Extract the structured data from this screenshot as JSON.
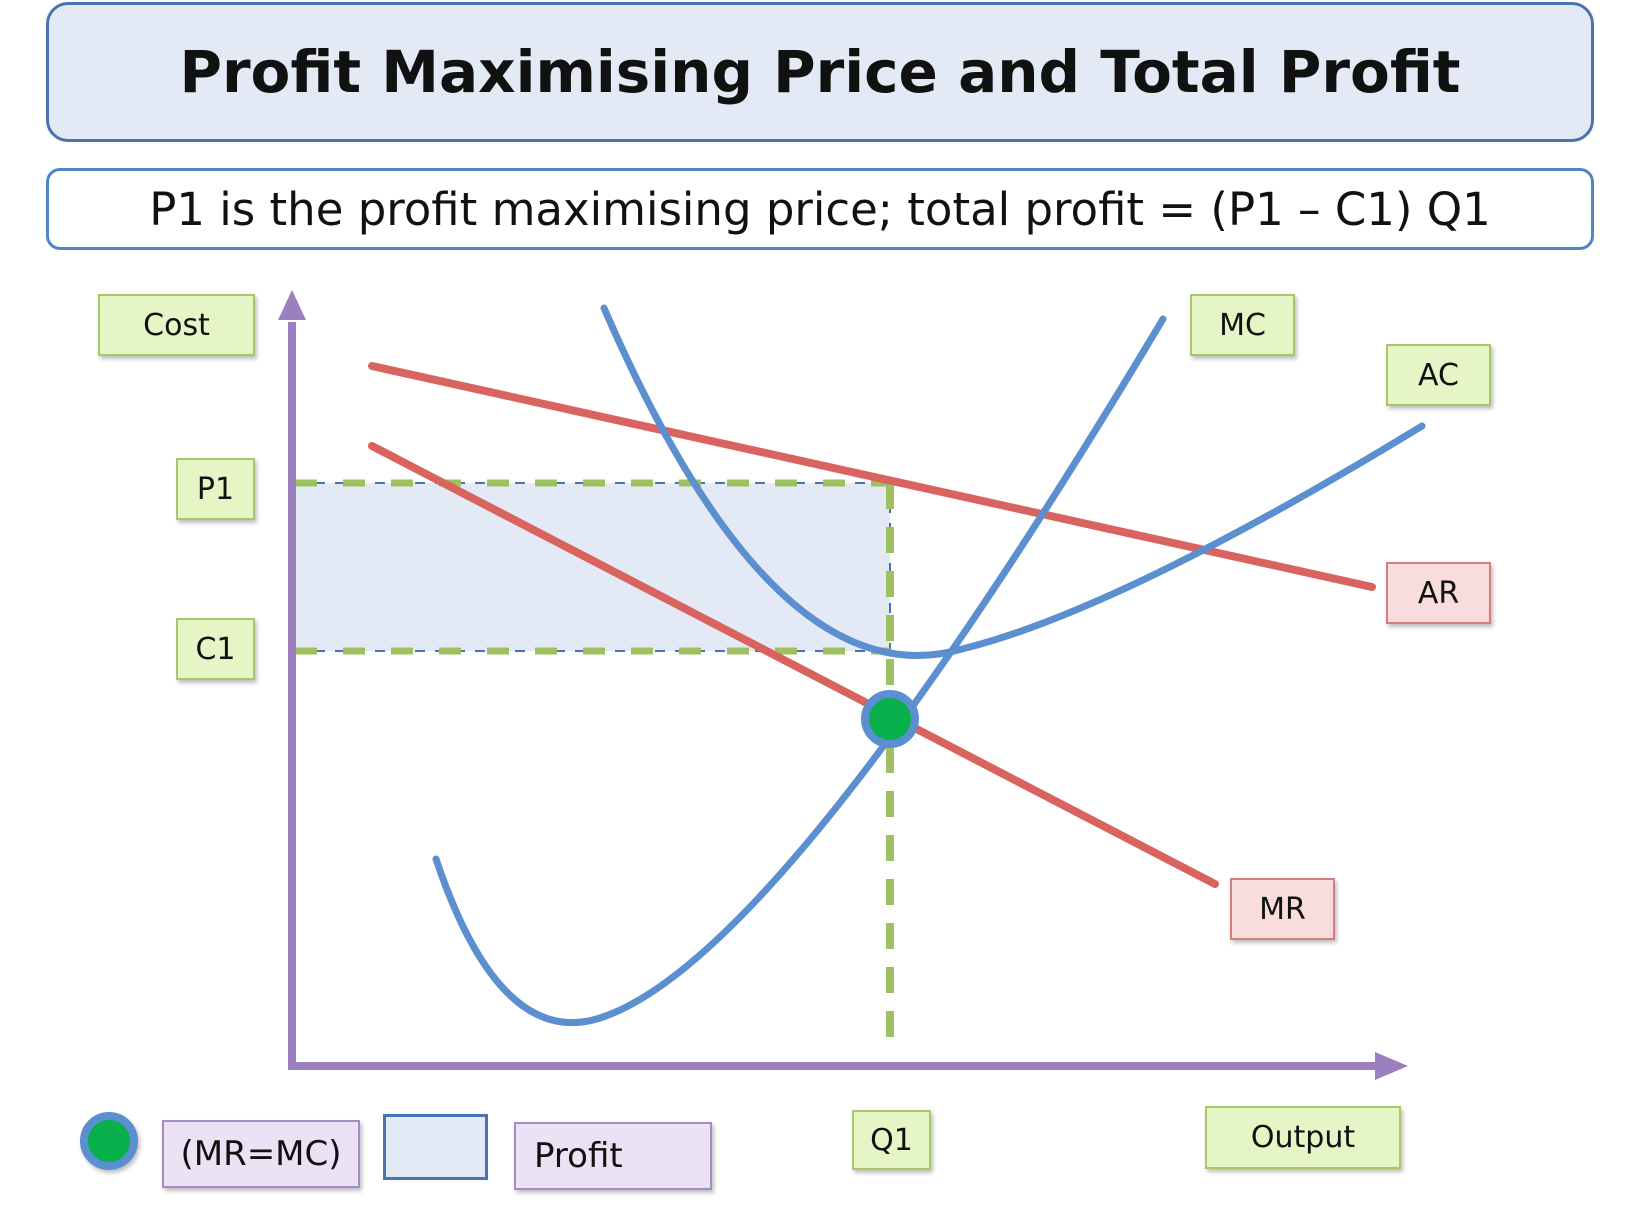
{
  "title": "Profit Maximising Price and Total Profit",
  "subtitle": "P1 is the profit maximising price; total profit = (P1 – C1) Q1",
  "axes": {
    "y_label": "Cost",
    "x_label": "Output"
  },
  "markers": {
    "price": "P1",
    "cost": "C1",
    "quantity": "Q1"
  },
  "curves": {
    "mc": "MC",
    "ac": "AC",
    "ar": "AR",
    "mr": "MR"
  },
  "legend": {
    "point_label": "(MR=MC)",
    "area_label": "Profit"
  },
  "colors": {
    "axis": "#9b7fbf",
    "cost_curves": "#5b8fcf",
    "revenue_curves": "#d9635f",
    "guide": "#9dc060",
    "profit_area": "#e3eaf5",
    "point": "#07b04b"
  }
}
